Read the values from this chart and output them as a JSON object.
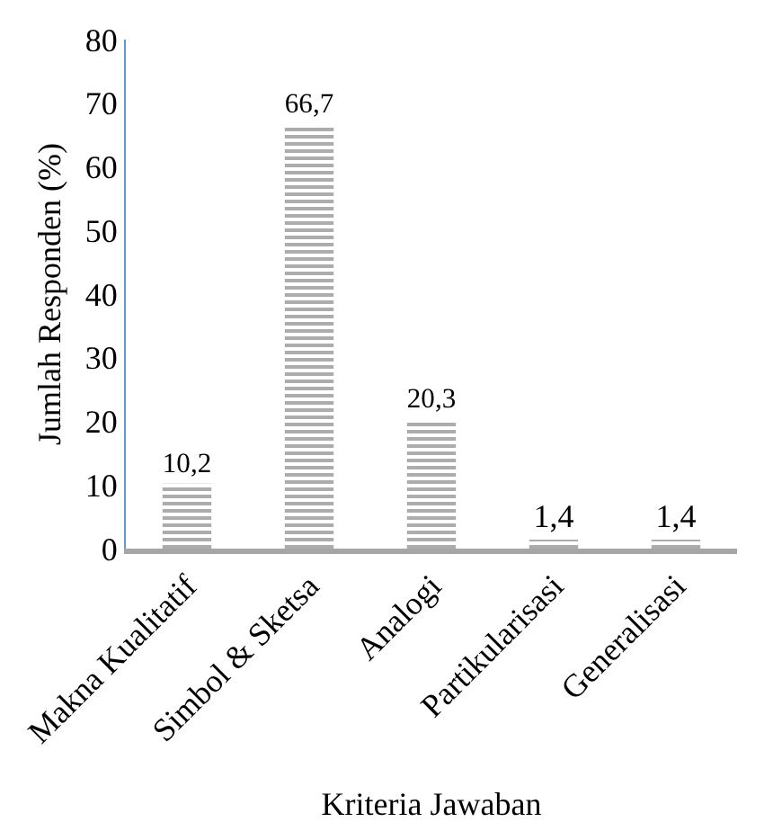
{
  "chart_data": {
    "type": "bar",
    "xlabel": "Kriteria Jawaban",
    "ylabel": "Jumlah Responden (%)",
    "categories": [
      "Makna Kualitatif",
      "Simbol & Sketsa",
      "Analogi",
      "Partikularisasi",
      "Generalisasi"
    ],
    "values": [
      10.2,
      66.7,
      20.3,
      1.4,
      1.4
    ],
    "value_labels": [
      "10,2",
      "66,7",
      "20,3",
      "1,4",
      "1,4"
    ],
    "color": "#595959",
    "ylim": [
      0,
      80
    ],
    "yticks": [
      0,
      10,
      20,
      30,
      40,
      50,
      60,
      70,
      80
    ]
  }
}
